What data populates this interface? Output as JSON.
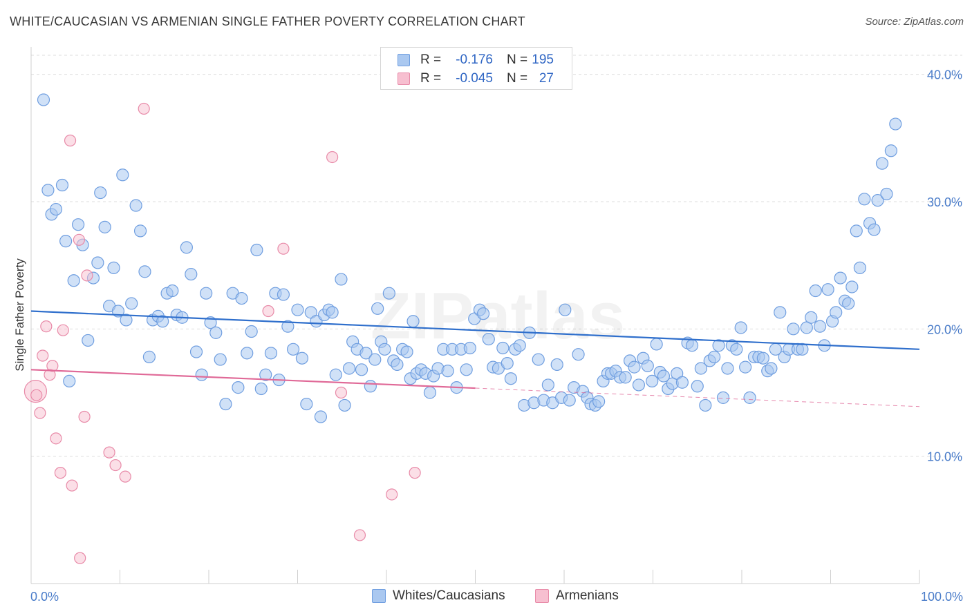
{
  "title": "WHITE/CAUCASIAN VS ARMENIAN SINGLE FATHER POVERTY CORRELATION CHART",
  "source": "Source: ZipAtlas.com",
  "watermark": "ZIPatlas",
  "legend": {
    "rows": [
      {
        "r_label": "R =",
        "r_value": "-0.176",
        "n_label": "N =",
        "n_value": "195"
      },
      {
        "r_label": "R =",
        "r_value": "-0.045",
        "n_label": "N =",
        "n_value": "27"
      }
    ]
  },
  "bottom_legend": [
    "Whites/Caucasians",
    "Armenians"
  ],
  "colors": {
    "blue_fill": "#aac8f0",
    "blue_stroke": "#6f9ee0",
    "blue_line": "#2f6fcc",
    "pink_fill": "#f7bfd0",
    "pink_stroke": "#e88aa8",
    "pink_line": "#e06a98",
    "grid": "#dddddd",
    "tick_text": "#4a7cc9"
  },
  "chart_data": {
    "type": "scatter",
    "title": "WHITE/CAUCASIAN VS ARMENIAN SINGLE FATHER POVERTY CORRELATION CHART",
    "xlabel": "",
    "ylabel": "Single Father Poverty",
    "xlim": [
      0,
      100
    ],
    "ylim": [
      0,
      41.5
    ],
    "x_tick_labels": [
      "0.0%",
      "100.0%"
    ],
    "y_ticks": [
      10,
      20,
      30,
      40
    ],
    "y_tick_labels": [
      "10.0%",
      "20.0%",
      "30.0%",
      "40.0%"
    ],
    "grid": true,
    "legend_position": "top-center",
    "series": [
      {
        "name": "Whites/Caucasians",
        "R": -0.176,
        "N": 195,
        "trend": {
          "x0": 0,
          "y0": 21.4,
          "x1": 100,
          "y1": 18.4
        },
        "points": [
          [
            1.4,
            38.0
          ],
          [
            1.9,
            30.9
          ],
          [
            2.3,
            29.0
          ],
          [
            2.8,
            29.4
          ],
          [
            3.5,
            31.3
          ],
          [
            3.9,
            26.9
          ],
          [
            4.3,
            15.9
          ],
          [
            4.8,
            23.8
          ],
          [
            5.3,
            28.2
          ],
          [
            5.8,
            26.6
          ],
          [
            6.4,
            19.1
          ],
          [
            7.0,
            24.0
          ],
          [
            7.5,
            25.2
          ],
          [
            7.8,
            30.7
          ],
          [
            8.3,
            28.0
          ],
          [
            8.8,
            21.8
          ],
          [
            9.3,
            24.8
          ],
          [
            9.8,
            21.4
          ],
          [
            10.3,
            32.1
          ],
          [
            10.7,
            20.7
          ],
          [
            11.3,
            22.0
          ],
          [
            11.8,
            29.7
          ],
          [
            12.3,
            27.7
          ],
          [
            12.8,
            24.5
          ],
          [
            13.3,
            17.8
          ],
          [
            13.7,
            20.7
          ],
          [
            14.3,
            21.0
          ],
          [
            14.8,
            20.6
          ],
          [
            15.3,
            22.8
          ],
          [
            15.9,
            23.0
          ],
          [
            16.4,
            21.1
          ],
          [
            17.0,
            20.9
          ],
          [
            17.5,
            26.4
          ],
          [
            18.0,
            24.3
          ],
          [
            18.6,
            18.2
          ],
          [
            19.2,
            16.4
          ],
          [
            19.7,
            22.8
          ],
          [
            20.2,
            20.5
          ],
          [
            20.8,
            19.7
          ],
          [
            21.3,
            17.6
          ],
          [
            21.9,
            14.1
          ],
          [
            22.7,
            22.8
          ],
          [
            23.3,
            15.4
          ],
          [
            23.7,
            22.4
          ],
          [
            24.3,
            18.1
          ],
          [
            24.8,
            19.8
          ],
          [
            25.4,
            26.2
          ],
          [
            25.9,
            15.3
          ],
          [
            26.4,
            16.4
          ],
          [
            27.0,
            18.1
          ],
          [
            27.5,
            22.8
          ],
          [
            27.9,
            16.0
          ],
          [
            28.4,
            22.7
          ],
          [
            28.9,
            20.2
          ],
          [
            29.5,
            18.4
          ],
          [
            30.0,
            21.5
          ],
          [
            30.5,
            17.7
          ],
          [
            31.0,
            14.1
          ],
          [
            31.5,
            21.3
          ],
          [
            32.1,
            20.6
          ],
          [
            32.6,
            13.1
          ],
          [
            33.0,
            21.1
          ],
          [
            33.5,
            21.5
          ],
          [
            33.9,
            21.3
          ],
          [
            34.3,
            16.4
          ],
          [
            34.9,
            23.9
          ],
          [
            35.3,
            14.0
          ],
          [
            35.8,
            16.9
          ],
          [
            36.2,
            19.0
          ],
          [
            36.7,
            18.4
          ],
          [
            37.2,
            16.8
          ],
          [
            37.7,
            18.1
          ],
          [
            38.2,
            15.5
          ],
          [
            38.7,
            17.6
          ],
          [
            39.0,
            21.6
          ],
          [
            39.4,
            19.0
          ],
          [
            39.8,
            18.4
          ],
          [
            40.3,
            22.8
          ],
          [
            40.8,
            17.5
          ],
          [
            41.2,
            17.2
          ],
          [
            41.8,
            18.4
          ],
          [
            42.3,
            18.2
          ],
          [
            42.7,
            16.1
          ],
          [
            43.0,
            20.6
          ],
          [
            43.4,
            16.5
          ],
          [
            43.9,
            16.8
          ],
          [
            44.4,
            16.5
          ],
          [
            44.9,
            15.0
          ],
          [
            45.3,
            16.3
          ],
          [
            45.8,
            16.9
          ],
          [
            46.4,
            18.4
          ],
          [
            46.9,
            16.7
          ],
          [
            47.4,
            18.4
          ],
          [
            47.9,
            15.4
          ],
          [
            48.4,
            18.4
          ],
          [
            49.0,
            16.8
          ],
          [
            49.4,
            18.5
          ],
          [
            49.9,
            20.8
          ],
          [
            50.5,
            21.5
          ],
          [
            50.9,
            21.2
          ],
          [
            51.5,
            19.2
          ],
          [
            52.0,
            17.0
          ],
          [
            52.6,
            16.9
          ],
          [
            53.1,
            18.5
          ],
          [
            53.6,
            17.3
          ],
          [
            54.0,
            16.1
          ],
          [
            54.5,
            18.4
          ],
          [
            55.0,
            18.7
          ],
          [
            55.5,
            14.0
          ],
          [
            56.1,
            19.7
          ],
          [
            56.6,
            14.2
          ],
          [
            57.1,
            17.6
          ],
          [
            57.7,
            14.4
          ],
          [
            58.2,
            15.6
          ],
          [
            58.7,
            14.2
          ],
          [
            59.2,
            17.2
          ],
          [
            59.7,
            14.6
          ],
          [
            60.1,
            21.5
          ],
          [
            60.6,
            14.4
          ],
          [
            61.1,
            15.4
          ],
          [
            61.6,
            18.0
          ],
          [
            62.1,
            15.1
          ],
          [
            62.6,
            14.6
          ],
          [
            63.0,
            14.1
          ],
          [
            63.5,
            14.0
          ],
          [
            63.9,
            14.3
          ],
          [
            64.4,
            15.9
          ],
          [
            64.9,
            16.5
          ],
          [
            65.3,
            16.5
          ],
          [
            65.8,
            16.7
          ],
          [
            66.3,
            16.2
          ],
          [
            66.9,
            16.2
          ],
          [
            67.4,
            17.5
          ],
          [
            67.9,
            17.0
          ],
          [
            68.4,
            15.6
          ],
          [
            68.9,
            17.7
          ],
          [
            69.4,
            17.1
          ],
          [
            69.9,
            15.9
          ],
          [
            70.4,
            18.8
          ],
          [
            70.8,
            16.6
          ],
          [
            71.2,
            16.3
          ],
          [
            71.7,
            15.3
          ],
          [
            72.2,
            15.7
          ],
          [
            72.7,
            16.5
          ],
          [
            73.3,
            15.8
          ],
          [
            73.9,
            18.9
          ],
          [
            74.4,
            18.7
          ],
          [
            75.0,
            15.5
          ],
          [
            75.4,
            16.9
          ],
          [
            75.9,
            14.0
          ],
          [
            76.4,
            17.5
          ],
          [
            76.9,
            17.8
          ],
          [
            77.4,
            18.7
          ],
          [
            77.9,
            14.6
          ],
          [
            78.4,
            16.9
          ],
          [
            78.9,
            18.7
          ],
          [
            79.4,
            18.4
          ],
          [
            79.9,
            20.1
          ],
          [
            80.4,
            17.0
          ],
          [
            80.9,
            14.6
          ],
          [
            81.4,
            17.8
          ],
          [
            81.9,
            17.8
          ],
          [
            82.4,
            17.7
          ],
          [
            82.9,
            16.7
          ],
          [
            83.3,
            16.9
          ],
          [
            83.8,
            18.4
          ],
          [
            84.3,
            21.3
          ],
          [
            84.8,
            17.8
          ],
          [
            85.3,
            18.4
          ],
          [
            85.8,
            20.0
          ],
          [
            86.3,
            18.4
          ],
          [
            86.8,
            18.4
          ],
          [
            87.3,
            20.1
          ],
          [
            87.8,
            20.9
          ],
          [
            88.3,
            23.0
          ],
          [
            88.8,
            20.2
          ],
          [
            89.3,
            18.7
          ],
          [
            89.7,
            23.1
          ],
          [
            90.2,
            20.6
          ],
          [
            90.6,
            21.3
          ],
          [
            91.1,
            24.0
          ],
          [
            91.6,
            22.2
          ],
          [
            92.0,
            22.0
          ],
          [
            92.4,
            23.3
          ],
          [
            92.9,
            27.7
          ],
          [
            93.3,
            24.8
          ],
          [
            93.8,
            30.2
          ],
          [
            94.4,
            28.3
          ],
          [
            94.9,
            27.8
          ],
          [
            95.3,
            30.1
          ],
          [
            95.8,
            33.0
          ],
          [
            96.3,
            30.6
          ],
          [
            96.8,
            34.0
          ],
          [
            97.3,
            36.1
          ]
        ]
      },
      {
        "name": "Armenians",
        "R": -0.045,
        "N": 27,
        "trend": {
          "x0": 0,
          "y0": 16.8,
          "x1": 50,
          "y1": 15.35,
          "dash_x1": 100,
          "dash_y1": 13.9
        },
        "points": [
          [
            0.5,
            15.1
          ],
          [
            0.6,
            14.8
          ],
          [
            1.0,
            13.4
          ],
          [
            1.3,
            17.9
          ],
          [
            1.7,
            20.2
          ],
          [
            2.1,
            16.4
          ],
          [
            2.4,
            17.1
          ],
          [
            2.8,
            11.4
          ],
          [
            3.3,
            8.7
          ],
          [
            3.6,
            19.9
          ],
          [
            4.4,
            34.8
          ],
          [
            4.6,
            7.7
          ],
          [
            5.5,
            2.0
          ],
          [
            5.4,
            27.0
          ],
          [
            6.0,
            13.1
          ],
          [
            6.3,
            24.2
          ],
          [
            8.8,
            10.3
          ],
          [
            9.5,
            9.3
          ],
          [
            10.6,
            8.4
          ],
          [
            12.7,
            37.3
          ],
          [
            26.7,
            21.4
          ],
          [
            28.4,
            26.3
          ],
          [
            33.9,
            33.5
          ],
          [
            34.9,
            15.0
          ],
          [
            37.0,
            3.8
          ],
          [
            40.6,
            7.0
          ],
          [
            43.2,
            8.7
          ]
        ]
      }
    ]
  }
}
